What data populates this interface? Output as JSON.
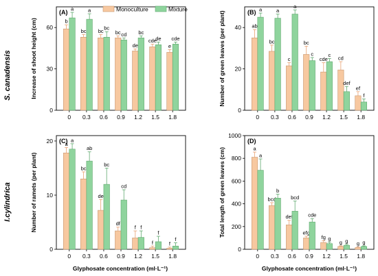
{
  "colors": {
    "mono": "#F7C8A0",
    "mono_stroke": "#C7966E",
    "mix": "#8FD49D",
    "mix_stroke": "#5FA86E",
    "err": "#E8A070"
  },
  "species": {
    "top": "S. canadensis",
    "bottom": "I.cylindrica"
  },
  "legend": {
    "mono": "Monoculture",
    "mix": "Mixture"
  },
  "xlabel": "Glyphosate concentration (ml·L⁻¹)",
  "chart_data": [
    {
      "type": "bar",
      "panel": "(A)",
      "ylabel": "Increase of shoot height (cm)",
      "ylim": [
        0,
        75
      ],
      "yticks": [
        0,
        30,
        60
      ],
      "categories": [
        "0",
        "0.3",
        "0.6",
        "0.9",
        "1.2",
        "1.5",
        "1.8"
      ],
      "series": [
        {
          "name": "Monoculture",
          "values": [
            59,
            53,
            52.5,
            52.5,
            43,
            46,
            42
          ],
          "errors": [
            3,
            2,
            2.5,
            1.5,
            1.5,
            2,
            2
          ],
          "letters": [
            "b",
            "bc",
            "bc",
            "bc",
            "de",
            "cde",
            "e"
          ]
        },
        {
          "name": "Mixture",
          "values": [
            67,
            66,
            53,
            51,
            52.5,
            47.5,
            48
          ],
          "errors": [
            4,
            4,
            4,
            1.5,
            1.5,
            2,
            1.5
          ],
          "letters": [
            "a",
            "a",
            "bc",
            "cd",
            "bc",
            "de",
            "cde"
          ]
        }
      ]
    },
    {
      "type": "bar",
      "panel": "(B)",
      "ylabel": "Number of green leaves (per plant)",
      "ylim": [
        0,
        50
      ],
      "yticks": [
        0,
        20,
        40
      ],
      "categories": [
        "0",
        "0.3",
        "0.6",
        "0.9",
        "1.2",
        "1.5",
        "1.8"
      ],
      "series": [
        {
          "name": "Monoculture",
          "values": [
            35,
            28.5,
            21.5,
            27,
            18.5,
            19.5,
            7
          ],
          "errors": [
            4,
            3,
            1.5,
            4,
            4.5,
            4,
            2
          ],
          "letters": [
            "ab",
            "bc",
            "c",
            "bc",
            "cde",
            "cd",
            "ef"
          ]
        },
        {
          "name": "Mixture",
          "values": [
            45,
            44.5,
            46.5,
            24,
            23.5,
            9,
            4
          ],
          "errors": [
            2,
            2,
            2,
            1.5,
            1.5,
            2.5,
            1.5
          ],
          "letters": [
            "a",
            "a",
            "a",
            "c",
            "c",
            "def",
            "f"
          ]
        }
      ]
    },
    {
      "type": "bar",
      "panel": "(C)",
      "ylabel": "Number of ramets (per plant)",
      "ylim": [
        0,
        21
      ],
      "yticks": [
        0,
        10,
        20
      ],
      "categories": [
        "0",
        "0.3",
        "0.6",
        "0.9",
        "1.2",
        "1.5",
        "1.8"
      ],
      "series": [
        {
          "name": "Monoculture",
          "values": [
            17.8,
            13,
            7.2,
            3.4,
            2.1,
            0.3,
            0.2
          ],
          "errors": [
            1,
            1.3,
            2,
            0.7,
            1.3,
            0.3,
            0.2
          ],
          "letters": [
            "a",
            "bc",
            "de",
            "df",
            "f",
            "f",
            "f"
          ]
        },
        {
          "name": "Mixture",
          "values": [
            18.5,
            16.3,
            12,
            9.1,
            2.2,
            1.4,
            0.6
          ],
          "errors": [
            1,
            1.7,
            3,
            1.9,
            1.2,
            1,
            0.6
          ],
          "letters": [
            "a",
            "ab",
            "bc",
            "cd",
            "f",
            "f",
            "f"
          ]
        }
      ]
    },
    {
      "type": "bar",
      "panel": "(D)",
      "ylabel": "Total length of green leaves (cm)",
      "ylim": [
        0,
        1000
      ],
      "yticks": [
        0,
        200,
        400,
        600,
        800,
        1000
      ],
      "categories": [
        "0",
        "0.3",
        "0.6",
        "0.9",
        "1.2",
        "1.5",
        "1.8"
      ],
      "series": [
        {
          "name": "Monoculture",
          "values": [
            810,
            385,
            215,
            100,
            60,
            25,
            15
          ],
          "errors": [
            45,
            25,
            40,
            15,
            15,
            5,
            5
          ],
          "letters": [
            "a",
            "bcd",
            "def",
            "efg",
            "fg",
            "g",
            "g"
          ]
        },
        {
          "name": "Mixture",
          "values": [
            695,
            450,
            335,
            240,
            50,
            35,
            25
          ],
          "errors": [
            100,
            35,
            90,
            30,
            12,
            8,
            5
          ],
          "letters": [
            "a",
            "b",
            "bcd",
            "cde",
            "g",
            "g",
            "g"
          ]
        }
      ]
    }
  ]
}
